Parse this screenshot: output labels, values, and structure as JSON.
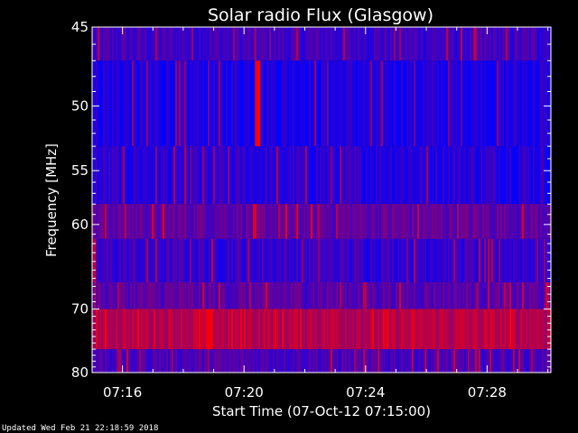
{
  "chart_data": {
    "type": "heatmap",
    "title": "Solar radio Flux (Glasgow)",
    "xlabel": "Start Time (07-Oct-12 07:15:00)",
    "ylabel": "Frequency [MHz]",
    "x_ticks": [
      "07:16",
      "07:20",
      "07:24",
      "07:28"
    ],
    "x_tick_minutes": [
      16,
      20,
      24,
      28
    ],
    "xlim_minutes": [
      15,
      30.1
    ],
    "y_ticks": [
      45,
      50,
      55,
      60,
      70,
      80
    ],
    "ylim": [
      45,
      80
    ],
    "y_scale": "reciprocal",
    "frequency_bands_mhz": [
      {
        "range": [
          45,
          47
        ],
        "level": 0.25
      },
      {
        "range": [
          47,
          53
        ],
        "level": 0.12
      },
      {
        "range": [
          53,
          58
        ],
        "level": 0.16
      },
      {
        "range": [
          58,
          61.5
        ],
        "level": 0.38
      },
      {
        "range": [
          61.5,
          66.5
        ],
        "level": 0.22
      },
      {
        "range": [
          66.5,
          70
        ],
        "level": 0.35
      },
      {
        "range": [
          70,
          76
        ],
        "level": 0.72
      },
      {
        "range": [
          76,
          80
        ],
        "level": 0.3
      }
    ],
    "burst_events": [
      {
        "time_minutes": 20.45,
        "frequency_mhz": [
          47,
          53
        ],
        "level": 1.0
      }
    ],
    "colormap": {
      "low": "#0000ff",
      "high": "#ff0000"
    },
    "grid": false,
    "legend": "none"
  },
  "footer": {
    "updated": "Updated Wed Feb 21 22:18:59 2018"
  }
}
